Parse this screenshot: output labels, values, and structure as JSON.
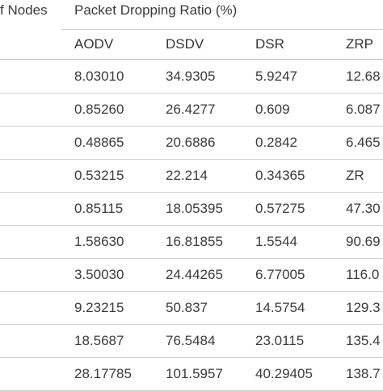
{
  "table": {
    "col_nodes_header": "f Nodes",
    "group_header": "Packet Dropping Ratio (%)",
    "columns": [
      "AODV",
      "DSDV",
      "DSR",
      "ZRP"
    ],
    "rows": [
      [
        "8.03010",
        "34.9305",
        "5.9247",
        "12.68"
      ],
      [
        "0.85260",
        "26.4277",
        "0.609",
        "6.087"
      ],
      [
        "0.48865",
        "20.6886",
        "0.2842",
        "6.465"
      ],
      [
        "0.53215",
        "22.214",
        "0.34365",
        "ZR"
      ],
      [
        "0.85115",
        "18.05395",
        "0.57275",
        "47.30"
      ],
      [
        "1.58630",
        "16.81855",
        "1.5544",
        "90.69"
      ],
      [
        "3.50030",
        "24.44265",
        "6.77005",
        "116.0"
      ],
      [
        "9.23215",
        "50.837",
        "14.5754",
        "129.3"
      ],
      [
        "18.5687",
        "76.5484",
        "23.0115",
        "135.4"
      ],
      [
        "28.17785",
        "101.5957",
        "40.29405",
        "138.7"
      ]
    ]
  }
}
